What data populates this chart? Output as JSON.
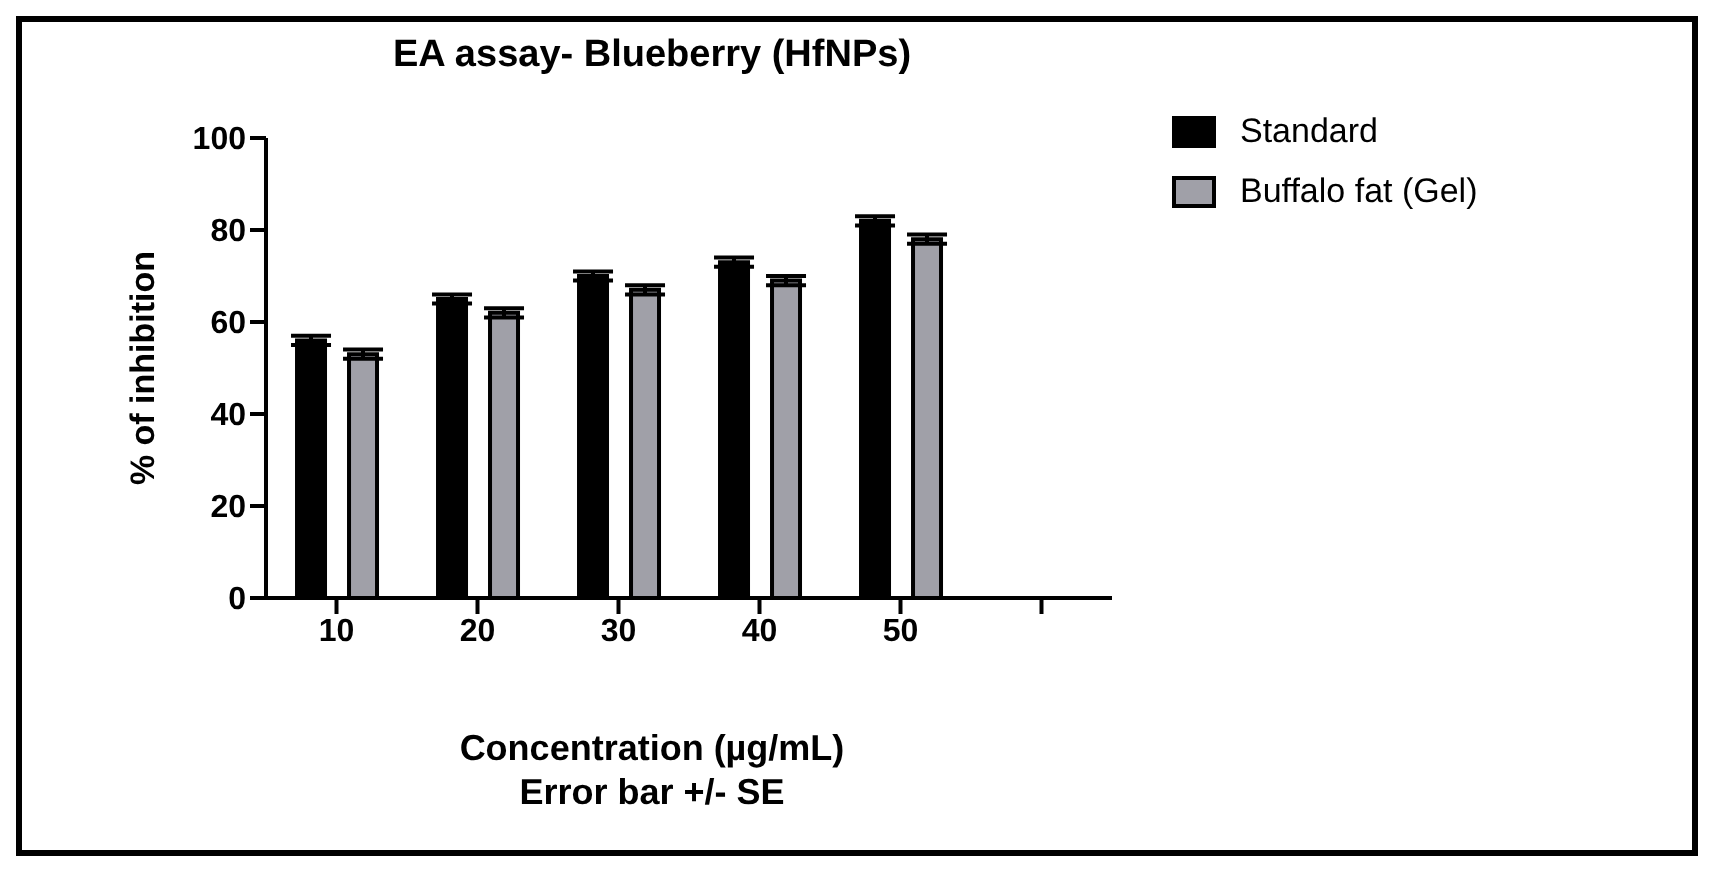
{
  "chart_data": {
    "type": "bar",
    "title": "EA assay- Blueberry (HfNPs)",
    "xlabel": "Concentration (µg/mL)",
    "ylabel": "% of inhibition",
    "annotations": [
      "Error bar +/- SE"
    ],
    "categories": [
      "10",
      "20",
      "30",
      "40",
      "50",
      null
    ],
    "series": [
      {
        "name": "Standard",
        "color": "#000000",
        "values": [
          56,
          65,
          70,
          73,
          82,
          null
        ],
        "errors": [
          1,
          1,
          1,
          1,
          1,
          null
        ]
      },
      {
        "name": "Buffalo fat (Gel)",
        "color": "#a0a0a8",
        "values": [
          53,
          62,
          67,
          69,
          78,
          null
        ],
        "errors": [
          1,
          1,
          1,
          1,
          1,
          null
        ]
      }
    ],
    "ylim": [
      0,
      100
    ],
    "yticks": [
      0,
      20,
      40,
      60,
      80,
      100
    ],
    "grid": false,
    "legend": "top right"
  }
}
